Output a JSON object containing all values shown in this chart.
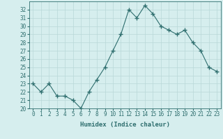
{
  "xlabel": "Humidex (Indice chaleur)",
  "x": [
    0,
    1,
    2,
    3,
    4,
    5,
    6,
    7,
    8,
    9,
    10,
    11,
    12,
    13,
    14,
    15,
    16,
    17,
    18,
    19,
    20,
    21,
    22,
    23
  ],
  "y": [
    23,
    22,
    23,
    21.5,
    21.5,
    21,
    20,
    22,
    23.5,
    25,
    27,
    29,
    32,
    31,
    32.5,
    31.5,
    30,
    29.5,
    29,
    29.5,
    28,
    27,
    25,
    24.5
  ],
  "ylim": [
    20,
    33
  ],
  "yticks": [
    20,
    21,
    22,
    23,
    24,
    25,
    26,
    27,
    28,
    29,
    30,
    31,
    32
  ],
  "line_color": "#2e6e6e",
  "marker": "+",
  "marker_size": 4,
  "bg_color": "#d6eeee",
  "grid_color": "#b8d8d8",
  "tick_label_color": "#2e6e6e",
  "xlabel_color": "#2e6e6e",
  "font_family": "monospace",
  "tick_fontsize": 5.5,
  "xlabel_fontsize": 6.5
}
